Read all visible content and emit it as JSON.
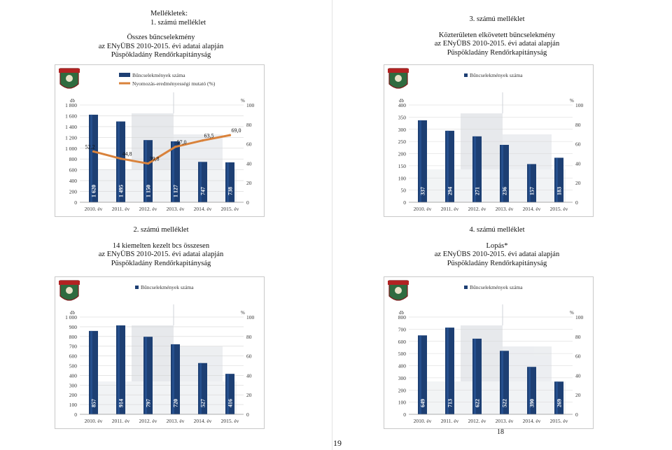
{
  "annex_header": {
    "line1": "Mellékletek:",
    "line2": "1.  számú melléklet"
  },
  "panels": [
    {
      "annex": "",
      "title_lines": [
        "Összes bűncselekmény",
        "az ENyÜBS 2010-2015. évi adatai alapján",
        "Püspökladány Rendőrkapitányság"
      ],
      "legend": [
        "Bűncselekmények száma",
        "Nyomozás-eredményességi mutató (%)"
      ]
    },
    {
      "annex": "3.  számú melléklet",
      "title_lines": [
        "Közterületen elkövetett bűncselekmény",
        "az ENyÜBS 2010-2015. évi adatai alapján",
        "Püspökladány Rendőrkapitányság"
      ],
      "legend": [
        "Bűncselekmények száma"
      ]
    },
    {
      "annex": "2.  számú melléklet",
      "title_lines": [
        "14 kiemelten kezelt bcs összesen",
        "az ENyÜBS 2010-2015. évi adatai alapján",
        "Püspökladány Rendőrkapitányság"
      ],
      "legend": [
        "Bűncselekmények száma"
      ]
    },
    {
      "annex": "4.  számú melléklet",
      "title_lines": [
        "Lopás*",
        "az ENyÜBS 2010-2015. évi adatai alapján",
        "Püspökladány Rendőrkapitányság"
      ],
      "legend": [
        "Bűncselekmények száma"
      ]
    }
  ],
  "chart_data": [
    {
      "type": "bar",
      "categories": [
        "2010. év",
        "2011. év",
        "2012. év",
        "2013. év",
        "2014. év",
        "2015. év"
      ],
      "series": [
        {
          "name": "Bűncselekmények száma",
          "values": [
            1620,
            1495,
            1150,
            1127,
            747,
            738
          ],
          "labels": [
            "1 620",
            "1 495",
            "1 150",
            "1 127",
            "747",
            "738"
          ],
          "color": "#1d3f73"
        },
        {
          "name": "Nyomozás-eredményességi mutató (%)",
          "type": "line",
          "axis": "right",
          "values": [
            52.2,
            44.8,
            39.8,
            57.0,
            63.5,
            69.0
          ],
          "labels": [
            "52,2",
            "44,8",
            "39,8",
            "57,0",
            "63,5",
            "69,0"
          ],
          "color": "#d9823b"
        }
      ],
      "ylabel_left": "db",
      "ylabel_right": "%",
      "ylim": [
        0,
        1800
      ],
      "y2lim": [
        0,
        100
      ],
      "yticks": [
        "0",
        "200",
        "400",
        "600",
        "800",
        "1 000",
        "1 200",
        "1 400",
        "1 600",
        "1 800"
      ],
      "y2ticks": [
        "0",
        "20",
        "40",
        "60",
        "80",
        "100"
      ],
      "legend_position": "top"
    },
    {
      "type": "bar",
      "categories": [
        "2010. év",
        "2011. év",
        "2012. év",
        "2013. év",
        "2014. év",
        "2015. év"
      ],
      "series": [
        {
          "name": "Bűncselekmények száma",
          "values": [
            337,
            294,
            271,
            236,
            157,
            183
          ],
          "labels": [
            "337",
            "294",
            "271",
            "236",
            "157",
            "183"
          ],
          "color": "#1d3f73"
        }
      ],
      "ylabel_left": "db",
      "ylabel_right": "%",
      "ylim": [
        0,
        400
      ],
      "y2lim": [
        0,
        100
      ],
      "yticks": [
        "0",
        "50",
        "100",
        "150",
        "200",
        "250",
        "300",
        "350",
        "400"
      ],
      "y2ticks": [
        "0",
        "20",
        "40",
        "60",
        "80",
        "100"
      ],
      "legend_position": "top"
    },
    {
      "type": "bar",
      "categories": [
        "2010. év",
        "2011. év",
        "2012. év",
        "2013. év",
        "2014. év",
        "2015. év"
      ],
      "series": [
        {
          "name": "Bűncselekmények száma",
          "values": [
            857,
            914,
            797,
            720,
            527,
            416
          ],
          "labels": [
            "857",
            "914",
            "797",
            "720",
            "527",
            "416"
          ],
          "color": "#1d3f73"
        }
      ],
      "ylabel_left": "db",
      "ylabel_right": "%",
      "ylim": [
        0,
        1000
      ],
      "y2lim": [
        0,
        100
      ],
      "yticks": [
        "0",
        "100",
        "200",
        "300",
        "400",
        "500",
        "600",
        "700",
        "800",
        "900",
        "1 000"
      ],
      "y2ticks": [
        "0",
        "20",
        "40",
        "60",
        "80",
        "100"
      ],
      "legend_position": "top"
    },
    {
      "type": "bar",
      "categories": [
        "2010. év",
        "2011. év",
        "2012. év",
        "2013. év",
        "2014. év",
        "2015. év"
      ],
      "series": [
        {
          "name": "Bűncselekmények száma",
          "values": [
            649,
            713,
            622,
            522,
            390,
            269
          ],
          "labels": [
            "649",
            "713",
            "622",
            "522",
            "390",
            "269"
          ],
          "color": "#1d3f73"
        }
      ],
      "ylabel_left": "db",
      "ylabel_right": "%",
      "ylim": [
        0,
        800
      ],
      "y2lim": [
        0,
        100
      ],
      "yticks": [
        "0",
        "100",
        "200",
        "300",
        "400",
        "500",
        "600",
        "700",
        "800"
      ],
      "y2ticks": [
        "0",
        "20",
        "40",
        "60",
        "80",
        "100"
      ],
      "legend_position": "top"
    }
  ],
  "page_numbers": {
    "left": "19",
    "right": "18"
  },
  "colors": {
    "bar": "#1d3f73",
    "bar_highlight": "#2c5a9e",
    "line": "#d9823b",
    "grid": "#d6d6d6",
    "axis_text": "#333333"
  }
}
